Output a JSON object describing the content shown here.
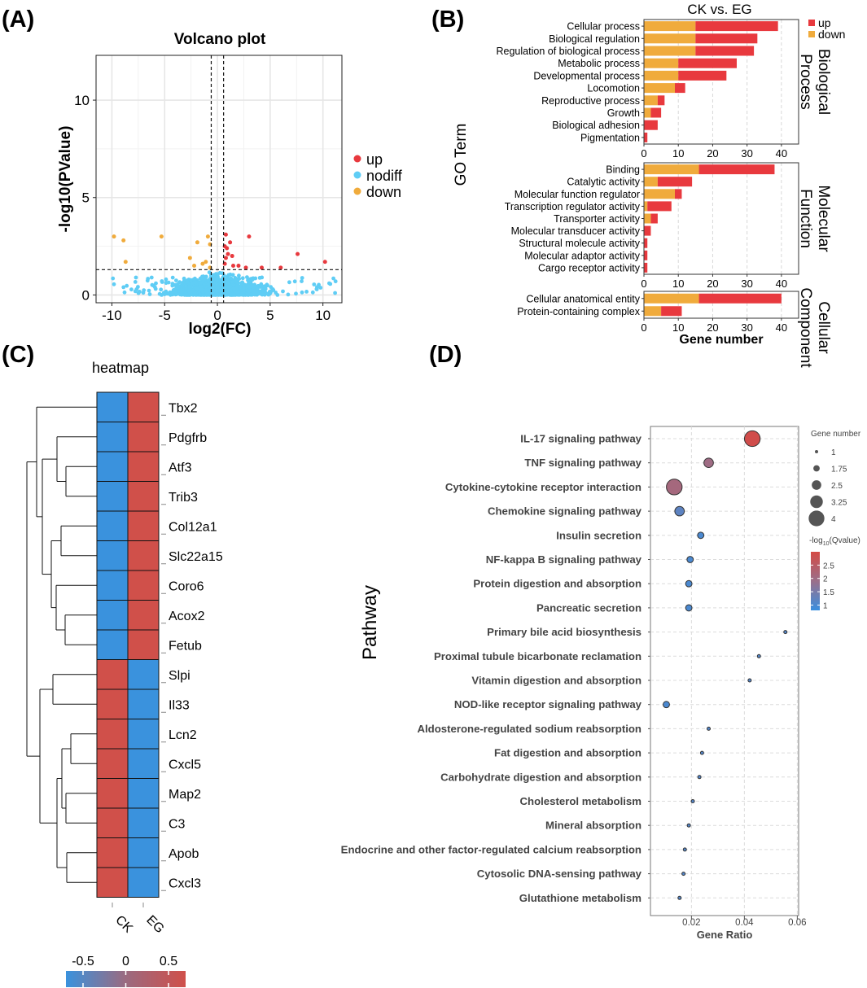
{
  "panels": {
    "a": "(A)",
    "b": "(B)",
    "c": "(C)",
    "d": "(D)"
  },
  "colors": {
    "up": "#e8393e",
    "down": "#f0ab3c",
    "nodiff": "#5fcdf5",
    "heat_high": "#d0504a",
    "heat_low": "#3a92dd",
    "heat_mid": "#9b6a80"
  },
  "chart_data": [
    {
      "id": "volcano",
      "type": "scatter",
      "title": "Volcano plot",
      "xlabel": "log2(FC)",
      "ylabel": "-log10(PValue)",
      "xlim": [
        -11.5,
        11.8
      ],
      "ylim": [
        -0.4,
        12.3
      ],
      "xticks": [
        -10,
        -5,
        0,
        5,
        10
      ],
      "yticks": [
        0,
        5,
        10
      ],
      "vlines": [
        -0.585,
        0.585
      ],
      "hline": 1.3,
      "legend": [
        "up",
        "nodiff",
        "down"
      ],
      "series": [
        {
          "name": "up",
          "points": [
            [
              0.7,
              2.5
            ],
            [
              0.9,
              2.4
            ],
            [
              1.2,
              2.7
            ],
            [
              0.8,
              1.9
            ],
            [
              1.0,
              2.1
            ],
            [
              1.4,
              2.0
            ],
            [
              0.7,
              1.6
            ],
            [
              2.0,
              1.5
            ],
            [
              2.7,
              1.4
            ],
            [
              3.0,
              3.0
            ],
            [
              4.2,
              1.4
            ],
            [
              6.0,
              1.4
            ],
            [
              7.6,
              2.1
            ],
            [
              10.2,
              1.7
            ],
            [
              0.8,
              3.1
            ],
            [
              1.5,
              1.5
            ]
          ]
        },
        {
          "name": "down",
          "points": [
            [
              -9.8,
              3.0
            ],
            [
              -8.9,
              2.8
            ],
            [
              -8.7,
              1.7
            ],
            [
              -5.3,
              3.0
            ],
            [
              -2.6,
              1.9
            ],
            [
              -1.9,
              2.7
            ],
            [
              -1.4,
              1.6
            ],
            [
              -0.9,
              3.0
            ],
            [
              -0.7,
              2.6
            ],
            [
              -1.1,
              1.7
            ],
            [
              -0.7,
              1.4
            ],
            [
              -2.2,
              1.5
            ]
          ]
        },
        {
          "name": "nodiff",
          "points": []
        }
      ]
    },
    {
      "id": "go",
      "type": "bar",
      "title": "CK vs. EG",
      "ylabel": "GO Term",
      "xlabel": "Gene number",
      "xlim": [
        0,
        45
      ],
      "xticks": [
        0,
        10,
        20,
        30,
        40
      ],
      "legend": [
        "up",
        "down"
      ],
      "groups": [
        {
          "name": "Biological Process",
          "strip": [
            "Biological",
            "Process"
          ],
          "terms": [
            "Cellular process",
            "Biological regulation",
            "Regulation of biological process",
            "Metabolic process",
            "Developmental process",
            "Locomotion",
            "Reproductive process",
            "Growth",
            "Biological adhesion",
            "Pigmentation"
          ],
          "down": [
            15,
            15,
            15,
            10,
            10,
            9,
            4,
            2,
            0,
            0
          ],
          "up": [
            24,
            18,
            17,
            17,
            14,
            3,
            2,
            3,
            4,
            1
          ]
        },
        {
          "name": "Molecular Function",
          "strip": [
            "Molecular",
            "Function"
          ],
          "terms": [
            "Binding",
            "Catalytic activity",
            "Molecular function regulator",
            "Transcription regulator activity",
            "Transporter activity",
            "Molecular transducer activity",
            "Structural molecule activity",
            "Molecular adaptor activity",
            "Cargo receptor activity"
          ],
          "down": [
            16,
            4,
            9,
            1,
            2,
            0,
            0,
            0,
            0
          ],
          "up": [
            22,
            10,
            2,
            7,
            2,
            2,
            1,
            1,
            1
          ]
        },
        {
          "name": "Cellular Component",
          "strip": [
            "Cellular",
            "Component"
          ],
          "terms": [
            "Cellular anatomical entity",
            "Protein-containing complex"
          ],
          "down": [
            16,
            5
          ],
          "up": [
            24,
            6
          ]
        }
      ]
    },
    {
      "id": "heatmap",
      "type": "heatmap",
      "title": "heatmap",
      "columns": [
        "CK",
        "EG"
      ],
      "rows": [
        "Tbx2",
        "Pdgfrb",
        "Atf3",
        "Trib3",
        "Col12a1",
        "Slc22a15",
        "Coro6",
        "Acox2",
        "Fetub",
        "Slpi",
        "Il33",
        "Lcn2",
        "Cxcl5",
        "Map2",
        "C3",
        "Apob",
        "Cxcl3"
      ],
      "values": [
        [
          -0.5,
          0.5
        ],
        [
          -0.5,
          0.5
        ],
        [
          -0.5,
          0.5
        ],
        [
          -0.5,
          0.5
        ],
        [
          -0.5,
          0.5
        ],
        [
          -0.5,
          0.5
        ],
        [
          -0.5,
          0.5
        ],
        [
          -0.5,
          0.5
        ],
        [
          -0.5,
          0.5
        ],
        [
          0.5,
          -0.5
        ],
        [
          0.5,
          -0.5
        ],
        [
          0.5,
          -0.5
        ],
        [
          0.5,
          -0.5
        ],
        [
          0.5,
          -0.5
        ],
        [
          0.5,
          -0.5
        ],
        [
          0.5,
          -0.5
        ],
        [
          0.5,
          -0.5
        ]
      ],
      "colorbar": {
        "range": [
          -0.7,
          0.7
        ],
        "ticks": [
          "-0.5",
          "0",
          "0.5"
        ],
        "tick_values": [
          -0.5,
          0,
          0.5
        ]
      }
    },
    {
      "id": "kegg",
      "type": "scatter",
      "xlabel": "Gene Ratio",
      "ylabel": "Pathway",
      "xlim": [
        0.0045,
        0.0605
      ],
      "xticks": [
        0.02,
        0.04,
        0.06
      ],
      "xtick_labels": [
        "0.02",
        "0.04",
        "0.06"
      ],
      "pathways": [
        "IL-17 signaling pathway",
        "TNF signaling pathway",
        "Cytokine-cytokine receptor interaction",
        "Chemokine signaling pathway",
        "Insulin secretion",
        "NF-kappa B signaling pathway",
        "Protein digestion and absorption",
        "Pancreatic secretion",
        "Primary bile acid biosynthesis",
        "Proximal tubule bicarbonate reclamation",
        "Vitamin digestion and absorption",
        "NOD-like receptor signaling pathway",
        "Aldosterone-regulated sodium reabsorption",
        "Fat digestion and absorption",
        "Carbohydrate digestion and absorption",
        "Cholesterol metabolism",
        "Mineral absorption",
        "Endocrine and other factor-regulated calcium reabsorption",
        "Cytosolic DNA-sensing pathway",
        "Glutathione metabolism"
      ],
      "gene_ratio": [
        0.043,
        0.0265,
        0.0135,
        0.0155,
        0.0235,
        0.0195,
        0.019,
        0.019,
        0.0555,
        0.0455,
        0.042,
        0.0105,
        0.0265,
        0.024,
        0.023,
        0.0205,
        0.019,
        0.0175,
        0.017,
        0.0155
      ],
      "gene_number": [
        4,
        2.5,
        4,
        2.5,
        1.75,
        1.75,
        1.75,
        1.75,
        1,
        1,
        1,
        1.75,
        1,
        1,
        1,
        1,
        1,
        1,
        1,
        1
      ],
      "qvalue": [
        2.9,
        2.0,
        2.1,
        1.2,
        1.0,
        1.0,
        1.0,
        1.0,
        1.1,
        1.1,
        1.1,
        1.0,
        1.1,
        1.1,
        1.1,
        1.1,
        1.1,
        1.1,
        1.1,
        1.1
      ],
      "size_legend": {
        "title": "Gene number",
        "labels": [
          "1",
          "1.75",
          "2.5",
          "3.25",
          "4"
        ],
        "values": [
          1,
          1.75,
          2.5,
          3.25,
          4
        ]
      },
      "color_legend": {
        "title_prefix": "-log",
        "title_sub": "10",
        "title_suffix": "(Qvalue)",
        "labels": [
          "2.5",
          "2",
          "1.5",
          "1"
        ],
        "values": [
          2.5,
          2,
          1.5,
          1
        ],
        "range": [
          0.8,
          3.0
        ]
      }
    }
  ]
}
